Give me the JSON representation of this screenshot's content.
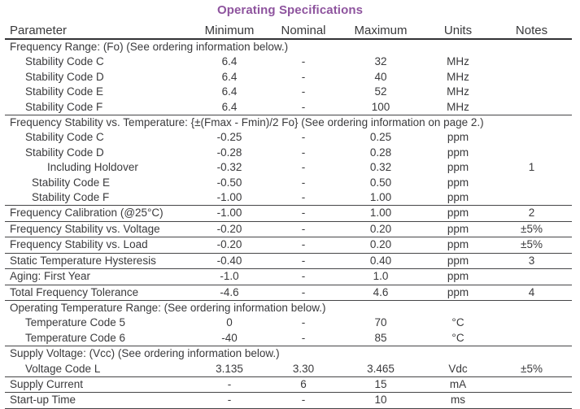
{
  "title": "Operating Specifications",
  "accent_color": "#8e549e",
  "text_color": "#3a3a3c",
  "table": {
    "headers": [
      "Parameter",
      "Minimum",
      "Nominal",
      "Maximum",
      "Units",
      "Notes"
    ],
    "rows": [
      {
        "type": "section",
        "label": "Frequency Range: (Fo) (See ordering information below.)",
        "indent": 0,
        "line_below": false
      },
      {
        "type": "data",
        "label": "Stability Code C",
        "indent": 1,
        "min": "6.4",
        "nom": "-",
        "max": "32",
        "units": "MHz",
        "notes": "",
        "line_below": false
      },
      {
        "type": "data",
        "label": "Stability Code D",
        "indent": 1,
        "min": "6.4",
        "nom": "-",
        "max": "40",
        "units": "MHz",
        "notes": "",
        "line_below": false
      },
      {
        "type": "data",
        "label": "Stability Code E",
        "indent": 1,
        "min": "6.4",
        "nom": "-",
        "max": "52",
        "units": "MHz",
        "notes": "",
        "line_below": false
      },
      {
        "type": "data",
        "label": "Stability Code F",
        "indent": 1,
        "min": "6.4",
        "nom": "-",
        "max": "100",
        "units": "MHz",
        "notes": "",
        "line_below": true
      },
      {
        "type": "section",
        "label": "Frequency Stability vs. Temperature: {±(Fmax - Fmin)/2 Fo} (See ordering information on page 2.)",
        "indent": 0,
        "line_below": false
      },
      {
        "type": "data",
        "label": "Stability Code C",
        "indent": 1,
        "min": "-0.25",
        "nom": "-",
        "max": "0.25",
        "units": "ppm",
        "notes": "",
        "line_below": false
      },
      {
        "type": "data",
        "label": "Stability Code D",
        "indent": 1,
        "min": "-0.28",
        "nom": "-",
        "max": "0.28",
        "units": "ppm",
        "notes": "",
        "line_below": false
      },
      {
        "type": "data",
        "label": "Including Holdover",
        "indent": 3,
        "min": "-0.32",
        "nom": "-",
        "max": "0.32",
        "units": "ppm",
        "notes": "1",
        "line_below": false
      },
      {
        "type": "data",
        "label": "Stability Code E",
        "indent": 2,
        "min": "-0.50",
        "nom": "-",
        "max": "0.50",
        "units": "ppm",
        "notes": "",
        "line_below": false
      },
      {
        "type": "data",
        "label": "Stability Code F",
        "indent": 2,
        "min": "-1.00",
        "nom": "-",
        "max": "1.00",
        "units": "ppm",
        "notes": "",
        "line_below": true
      },
      {
        "type": "data",
        "label": "Frequency Calibration (@25°C)",
        "indent": 0,
        "min": "-1.00",
        "nom": "-",
        "max": "1.00",
        "units": "ppm",
        "notes": "2",
        "line_below": true
      },
      {
        "type": "data",
        "label": "Frequency Stability vs. Voltage",
        "indent": 0,
        "min": "-0.20",
        "nom": "-",
        "max": "0.20",
        "units": "ppm",
        "notes": "±5%",
        "line_below": true
      },
      {
        "type": "data",
        "label": "Frequency Stability vs. Load",
        "indent": 0,
        "min": "-0.20",
        "nom": "-",
        "max": "0.20",
        "units": "ppm",
        "notes": "±5%",
        "line_below": true
      },
      {
        "type": "data",
        "label": "Static Temperature Hysteresis",
        "indent": 0,
        "min": "-0.40",
        "nom": "-",
        "max": "0.40",
        "units": "ppm",
        "notes": "3",
        "line_below": true
      },
      {
        "type": "data",
        "label": "Aging: First Year",
        "indent": 0,
        "min": "-1.0",
        "nom": "-",
        "max": "1.0",
        "units": "ppm",
        "notes": "",
        "line_below": true
      },
      {
        "type": "data",
        "label": "Total Frequency Tolerance",
        "indent": 0,
        "min": "-4.6",
        "nom": "-",
        "max": "4.6",
        "units": "ppm",
        "notes": "4",
        "line_below": true
      },
      {
        "type": "section",
        "label": "Operating Temperature Range: (See ordering information below.)",
        "indent": 0,
        "line_below": false
      },
      {
        "type": "data",
        "label": "Temperature Code 5",
        "indent": 1,
        "min": "0",
        "nom": "-",
        "max": "70",
        "units": "°C",
        "notes": "",
        "line_below": false
      },
      {
        "type": "data",
        "label": "Temperature Code 6",
        "indent": 1,
        "min": "-40",
        "nom": "-",
        "max": "85",
        "units": "°C",
        "notes": "",
        "line_below": true
      },
      {
        "type": "section",
        "label": "Supply Voltage: (Vcc) (See ordering information below.)",
        "indent": 0,
        "line_below": false
      },
      {
        "type": "data",
        "label": "Voltage Code L",
        "indent": 1,
        "min": "3.135",
        "nom": "3.30",
        "max": "3.465",
        "units": "Vdc",
        "notes": "±5%",
        "line_below": true
      },
      {
        "type": "data",
        "label": "Supply Current",
        "indent": 0,
        "min": "-",
        "nom": "6",
        "max": "15",
        "units": "mA",
        "notes": "",
        "line_below": true
      },
      {
        "type": "data",
        "label": "Start-up Time",
        "indent": 0,
        "min": "-",
        "nom": "-",
        "max": "10",
        "units": "ms",
        "notes": "",
        "line_below": true
      }
    ]
  }
}
